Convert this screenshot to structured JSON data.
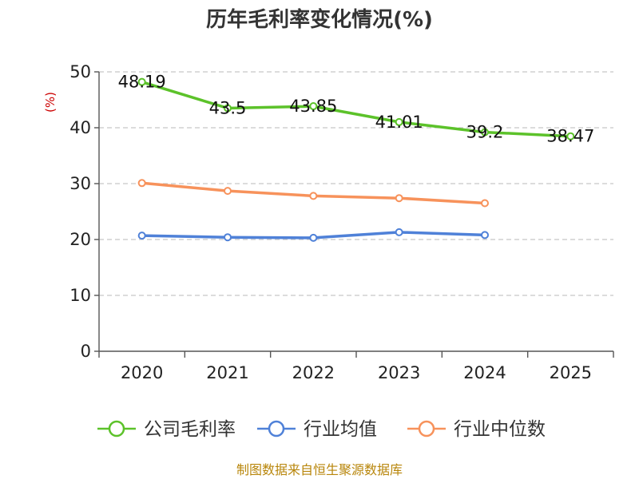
{
  "chart_data": {
    "type": "line",
    "title": "历年毛利率变化情况(%)",
    "ylabel": "(%)",
    "xlabel": "",
    "categories": [
      "2020",
      "2021",
      "2022",
      "2023",
      "2024",
      "2025"
    ],
    "ylim": [
      0,
      50
    ],
    "yticks": [
      0,
      10,
      20,
      30,
      40,
      50
    ],
    "grid": true,
    "legend_position": "bottom",
    "series": [
      {
        "name": "公司毛利率",
        "color": "#5cc22a",
        "values": [
          48.19,
          43.5,
          43.85,
          41.01,
          39.2,
          38.47
        ],
        "labels": [
          "48.19",
          "43.5",
          "43.85",
          "41.01",
          "39.2",
          "38.47"
        ],
        "show_labels": true
      },
      {
        "name": "行业均值",
        "color": "#4f81d8",
        "values": [
          20.7,
          20.4,
          20.3,
          21.3,
          20.8,
          null
        ],
        "show_labels": false
      },
      {
        "name": "行业中位数",
        "color": "#f7925b",
        "values": [
          30.1,
          28.7,
          27.8,
          27.4,
          26.5,
          null
        ],
        "show_labels": false
      }
    ],
    "source": "制图数据来自恒生聚源数据库"
  },
  "colors": {
    "title": "#333333",
    "axis": "#555555",
    "grid": "#c8c8c8",
    "unit": "#cc0000",
    "source": "#b8860b"
  }
}
